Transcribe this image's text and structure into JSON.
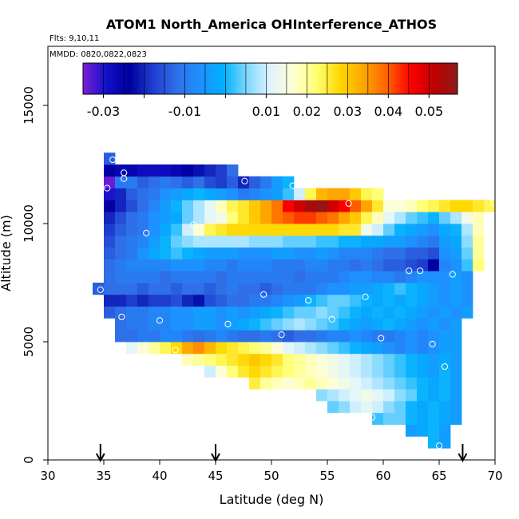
{
  "header": {
    "title": "ATOM1 North_America OHInterference_ATHOS",
    "flights_note": "Flts: 9,10,11",
    "dates_note": "MMDD: 0820,0822,0823"
  },
  "chart_data": {
    "type": "heatmap",
    "title": "ATOM1 North_America OHInterference_ATHOS",
    "xlabel": "Latitude (deg N)",
    "ylabel": "Altitude (m)",
    "xlim": [
      30,
      70
    ],
    "ylim": [
      0,
      17500
    ],
    "x_ticks": [
      30,
      35,
      40,
      45,
      50,
      55,
      60,
      65,
      70
    ],
    "y_ticks": [
      0,
      5000,
      10000,
      15000
    ],
    "grid": false,
    "colorbar": {
      "range": [
        -0.035,
        0.057
      ],
      "tick_values": [
        -0.03,
        -0.01,
        0.01,
        0.02,
        0.03,
        0.04,
        0.05
      ],
      "tick_labels": [
        "-0.03",
        "-0.01",
        "0.01",
        "0.02",
        "0.03",
        "0.04",
        "0.05"
      ],
      "colors": [
        "#7b1fd6",
        "#1010c8",
        "#0000a0",
        "#1f3fd0",
        "#2f6fe8",
        "#1e90ff",
        "#00b0ff",
        "#80d8ff",
        "#e0f4ff",
        "#ffffd0",
        "#ffff70",
        "#ffd700",
        "#ffa500",
        "#ff6000",
        "#ff0000",
        "#c00000",
        "#8b1a1a"
      ]
    },
    "cell_size": {
      "lat": 1,
      "alt": 500
    },
    "row_spans": [
      {
        "alt": 500,
        "lat0": 64,
        "lat1": 66,
        "values": [
          0.0,
          -0.004
        ]
      },
      {
        "alt": 1000,
        "lat0": 62,
        "lat1": 66,
        "values": [
          -0.004,
          -0.002,
          0.0,
          -0.004
        ]
      },
      {
        "alt": 1500,
        "lat0": 59,
        "lat1": 67,
        "values": [
          0.002,
          0.004,
          0.004,
          0.0,
          -0.002,
          0.0,
          -0.002,
          -0.004
        ]
      },
      {
        "alt": 2000,
        "lat0": 55,
        "lat1": 67,
        "values": [
          0.004,
          0.006,
          0.01,
          0.012,
          0.01,
          0.006,
          0.004,
          0.0,
          -0.002,
          0.0,
          -0.002,
          -0.004
        ]
      },
      {
        "alt": 2500,
        "lat0": 54,
        "lat1": 67,
        "values": [
          0.006,
          0.008,
          0.01,
          0.012,
          0.014,
          0.012,
          0.01,
          0.006,
          0.004,
          0.0,
          -0.002,
          0.0,
          -0.004
        ]
      },
      {
        "alt": 3000,
        "lat0": 48,
        "lat1": 67,
        "values": [
          0.025,
          0.02,
          0.018,
          0.016,
          0.018,
          0.02,
          0.018,
          0.016,
          0.014,
          0.012,
          0.01,
          0.008,
          0.006,
          0.004,
          0.002,
          0.0,
          -0.002,
          0.0,
          -0.004
        ]
      },
      {
        "alt": 3500,
        "lat0": 44,
        "lat1": 67,
        "values": [
          0.01,
          0.016,
          0.022,
          0.026,
          0.028,
          0.026,
          0.024,
          0.022,
          0.02,
          0.018,
          0.016,
          0.014,
          0.012,
          0.01,
          0.008,
          0.006,
          0.004,
          0.002,
          0.0,
          -0.002,
          -0.004,
          0.0,
          -0.004
        ]
      },
      {
        "alt": 4000,
        "lat0": 42,
        "lat1": 67,
        "values": [
          0.018,
          0.02,
          0.022,
          0.024,
          0.026,
          0.028,
          0.03,
          0.028,
          0.026,
          0.022,
          0.02,
          0.018,
          0.016,
          0.014,
          0.012,
          0.01,
          0.008,
          0.006,
          0.004,
          0.002,
          0.0,
          -0.002,
          -0.004,
          -0.002,
          -0.004
        ]
      },
      {
        "alt": 4500,
        "lat0": 37,
        "lat1": 67,
        "values": [
          0.012,
          0.016,
          0.02,
          0.024,
          0.028,
          0.034,
          0.036,
          0.032,
          0.028,
          0.026,
          0.024,
          0.022,
          0.02,
          0.016,
          0.012,
          0.01,
          0.008,
          0.006,
          0.004,
          0.002,
          0.0,
          -0.002,
          -0.004,
          -0.006,
          -0.008,
          -0.006,
          -0.008,
          -0.006,
          -0.004,
          -0.004
        ]
      },
      {
        "alt": 5000,
        "lat0": 36,
        "lat1": 67,
        "values": [
          -0.012,
          -0.012,
          -0.01,
          -0.01,
          -0.008,
          -0.008,
          -0.01,
          -0.012,
          -0.01,
          -0.008,
          -0.01,
          -0.012,
          -0.012,
          -0.01,
          -0.012,
          -0.014,
          -0.012,
          -0.012,
          -0.01,
          -0.008,
          -0.008,
          -0.006,
          -0.008,
          -0.01,
          -0.01,
          -0.008,
          -0.006,
          -0.008,
          -0.006,
          -0.004,
          -0.004
        ]
      },
      {
        "alt": 5500,
        "lat0": 36,
        "lat1": 67,
        "values": [
          -0.012,
          -0.01,
          -0.01,
          -0.008,
          -0.008,
          -0.006,
          -0.006,
          -0.004,
          -0.004,
          -0.006,
          -0.004,
          -0.002,
          0.0,
          0.002,
          0.004,
          0.006,
          0.008,
          0.006,
          0.004,
          0.002,
          0.0,
          -0.002,
          -0.004,
          -0.002,
          0.0,
          -0.002,
          -0.004,
          -0.006,
          -0.004,
          -0.006,
          -0.004
        ]
      },
      {
        "alt": 6000,
        "lat0": 35,
        "lat1": 68,
        "values": [
          -0.014,
          -0.012,
          -0.01,
          -0.01,
          -0.008,
          -0.008,
          -0.006,
          -0.006,
          -0.004,
          -0.004,
          -0.006,
          -0.004,
          -0.006,
          -0.004,
          -0.002,
          0.0,
          0.002,
          0.004,
          0.004,
          0.006,
          0.004,
          0.002,
          0.0,
          -0.002,
          0.0,
          -0.002,
          0.0,
          -0.002,
          -0.004,
          -0.006,
          -0.004,
          -0.006,
          -0.004
        ]
      },
      {
        "alt": 6500,
        "lat0": 35,
        "lat1": 68,
        "values": [
          -0.02,
          -0.02,
          -0.018,
          -0.02,
          -0.018,
          -0.018,
          -0.016,
          -0.02,
          -0.022,
          -0.016,
          -0.014,
          -0.012,
          -0.012,
          -0.01,
          -0.01,
          -0.008,
          -0.006,
          -0.004,
          0.0,
          0.002,
          0.004,
          0.004,
          0.002,
          0.0,
          -0.002,
          0.0,
          -0.002,
          0.0,
          -0.002,
          -0.004,
          -0.006,
          -0.004,
          -0.006
        ]
      },
      {
        "alt": 7000,
        "lat0": 34,
        "lat1": 68,
        "values": [
          -0.014,
          -0.012,
          -0.012,
          -0.012,
          -0.014,
          -0.012,
          -0.012,
          -0.014,
          -0.012,
          -0.012,
          -0.014,
          -0.012,
          -0.01,
          -0.012,
          -0.012,
          -0.014,
          -0.012,
          -0.01,
          -0.01,
          -0.01,
          -0.008,
          -0.006,
          -0.006,
          -0.004,
          -0.004,
          -0.002,
          0.0,
          0.002,
          0.0,
          -0.002,
          -0.004,
          -0.006,
          -0.004,
          -0.006
        ]
      },
      {
        "alt": 7500,
        "lat0": 35,
        "lat1": 68,
        "values": [
          -0.012,
          -0.01,
          -0.01,
          -0.01,
          -0.01,
          -0.012,
          -0.01,
          -0.01,
          -0.01,
          -0.01,
          -0.012,
          -0.01,
          -0.01,
          -0.01,
          -0.01,
          -0.01,
          -0.01,
          -0.012,
          -0.01,
          -0.01,
          -0.01,
          -0.008,
          -0.006,
          -0.006,
          -0.008,
          -0.008,
          -0.01,
          -0.008,
          -0.006,
          -0.006,
          -0.006,
          -0.004,
          -0.006
        ]
      },
      {
        "alt": 8000,
        "lat0": 35,
        "lat1": 69,
        "values": [
          -0.012,
          -0.01,
          -0.008,
          -0.008,
          -0.008,
          -0.008,
          -0.006,
          -0.006,
          -0.006,
          -0.008,
          -0.008,
          -0.01,
          -0.008,
          -0.008,
          -0.008,
          -0.01,
          -0.01,
          -0.01,
          -0.008,
          -0.008,
          -0.01,
          -0.01,
          -0.012,
          -0.01,
          -0.012,
          -0.014,
          -0.014,
          -0.016,
          -0.018,
          -0.024,
          -0.008,
          -0.006,
          0.002,
          0.022
        ]
      },
      {
        "alt": 8500,
        "lat0": 35,
        "lat1": 69,
        "values": [
          -0.014,
          -0.012,
          -0.01,
          -0.006,
          -0.002,
          0.0,
          0.002,
          0.0,
          -0.002,
          -0.004,
          -0.004,
          -0.004,
          -0.006,
          -0.006,
          -0.006,
          -0.004,
          -0.004,
          -0.006,
          -0.006,
          -0.004,
          -0.006,
          -0.008,
          -0.008,
          -0.008,
          -0.01,
          -0.012,
          -0.012,
          -0.014,
          -0.014,
          -0.016,
          -0.006,
          -0.004,
          0.004,
          0.02
        ]
      },
      {
        "alt": 9000,
        "lat0": 35,
        "lat1": 69,
        "values": [
          -0.016,
          -0.012,
          -0.01,
          -0.008,
          -0.004,
          0.0,
          0.004,
          0.006,
          0.008,
          0.008,
          0.008,
          0.008,
          0.008,
          0.006,
          0.006,
          0.006,
          0.004,
          0.004,
          0.004,
          0.002,
          0.002,
          0.0,
          0.0,
          -0.002,
          -0.002,
          -0.004,
          -0.004,
          -0.006,
          -0.008,
          -0.01,
          -0.004,
          -0.002,
          0.006,
          0.02
        ]
      },
      {
        "alt": 9500,
        "lat0": 35,
        "lat1": 69,
        "values": [
          -0.018,
          -0.014,
          -0.012,
          -0.01,
          -0.006,
          -0.002,
          0.002,
          0.01,
          0.016,
          0.024,
          0.026,
          0.028,
          0.028,
          0.028,
          0.028,
          0.028,
          0.028,
          0.028,
          0.028,
          0.028,
          0.028,
          0.026,
          0.026,
          0.014,
          0.01,
          0.004,
          0.0,
          -0.002,
          -0.004,
          -0.006,
          -0.002,
          0.0,
          0.008,
          0.018
        ]
      },
      {
        "alt": 10000,
        "lat0": 35,
        "lat1": 69,
        "values": [
          -0.02,
          -0.016,
          -0.012,
          -0.01,
          -0.006,
          -0.004,
          -0.002,
          0.004,
          0.008,
          0.012,
          0.014,
          0.022,
          0.026,
          0.03,
          0.034,
          0.038,
          0.04,
          0.042,
          0.042,
          0.04,
          0.038,
          0.034,
          0.03,
          0.024,
          0.018,
          0.012,
          0.008,
          0.004,
          0.002,
          0.0,
          0.004,
          0.008,
          0.014,
          0.018
        ]
      },
      {
        "alt": 10500,
        "lat0": 35,
        "lat1": 70,
        "values": [
          -0.024,
          -0.02,
          -0.016,
          -0.012,
          -0.008,
          -0.004,
          0.0,
          0.004,
          0.008,
          0.012,
          0.018,
          0.024,
          0.026,
          0.03,
          0.034,
          0.038,
          0.046,
          0.05,
          0.054,
          0.056,
          0.05,
          0.046,
          0.04,
          0.034,
          0.026,
          0.016,
          0.016,
          0.018,
          0.022,
          0.024,
          0.026,
          0.028,
          0.028,
          0.026,
          0.024
        ]
      },
      {
        "alt": 11000,
        "lat0": 35,
        "lat1": 60,
        "values": [
          -0.03,
          -0.02,
          -0.014,
          -0.012,
          -0.01,
          -0.006,
          -0.004,
          -0.002,
          0.0,
          -0.002,
          -0.004,
          -0.006,
          -0.01,
          -0.008,
          -0.006,
          -0.004,
          0.002,
          0.01,
          0.024,
          0.032,
          0.034,
          0.034,
          0.03,
          0.024,
          0.022
        ]
      },
      {
        "alt": 11500,
        "lat0": 35,
        "lat1": 52,
        "values": [
          -0.034,
          -0.01,
          -0.01,
          -0.014,
          -0.012,
          -0.01,
          -0.012,
          -0.014,
          -0.012,
          -0.016,
          -0.018,
          -0.014,
          -0.02,
          -0.014,
          -0.01,
          -0.004,
          0.0
        ]
      },
      {
        "alt": 12000,
        "lat0": 35,
        "lat1": 47,
        "values": [
          -0.024,
          -0.026,
          -0.026,
          -0.028,
          -0.028,
          -0.028,
          -0.026,
          -0.024,
          -0.022,
          -0.02,
          -0.018,
          -0.012
        ]
      },
      {
        "alt": 12500,
        "lat0": 35,
        "lat1": 36,
        "values": [
          -0.014
        ]
      }
    ],
    "sample_points": [
      {
        "lat": 34.7,
        "alt": 7200
      },
      {
        "lat": 35.8,
        "alt": 12700
      },
      {
        "lat": 36.8,
        "alt": 12150
      },
      {
        "lat": 36.8,
        "alt": 11900
      },
      {
        "lat": 35.3,
        "alt": 11500
      },
      {
        "lat": 38.8,
        "alt": 9600
      },
      {
        "lat": 36.6,
        "alt": 6050
      },
      {
        "lat": 40.0,
        "alt": 5900
      },
      {
        "lat": 41.4,
        "alt": 4650
      },
      {
        "lat": 43.0,
        "alt": 9950
      },
      {
        "lat": 46.1,
        "alt": 5750
      },
      {
        "lat": 47.6,
        "alt": 11800
      },
      {
        "lat": 49.3,
        "alt": 7000
      },
      {
        "lat": 50.9,
        "alt": 5300
      },
      {
        "lat": 51.9,
        "alt": 11600
      },
      {
        "lat": 53.3,
        "alt": 6750
      },
      {
        "lat": 55.4,
        "alt": 5950
      },
      {
        "lat": 56.9,
        "alt": 10850
      },
      {
        "lat": 58.4,
        "alt": 6900
      },
      {
        "lat": 59.8,
        "alt": 5150
      },
      {
        "lat": 59.0,
        "alt": 1800
      },
      {
        "lat": 62.3,
        "alt": 8000
      },
      {
        "lat": 63.3,
        "alt": 8000
      },
      {
        "lat": 64.4,
        "alt": 4900
      },
      {
        "lat": 65.5,
        "alt": 3950
      },
      {
        "lat": 66.2,
        "alt": 7850
      },
      {
        "lat": 65.0,
        "alt": 600
      },
      {
        "lat": 69.9,
        "alt": 10900
      }
    ],
    "arrows": [
      34.7,
      45.0,
      67.1
    ]
  }
}
